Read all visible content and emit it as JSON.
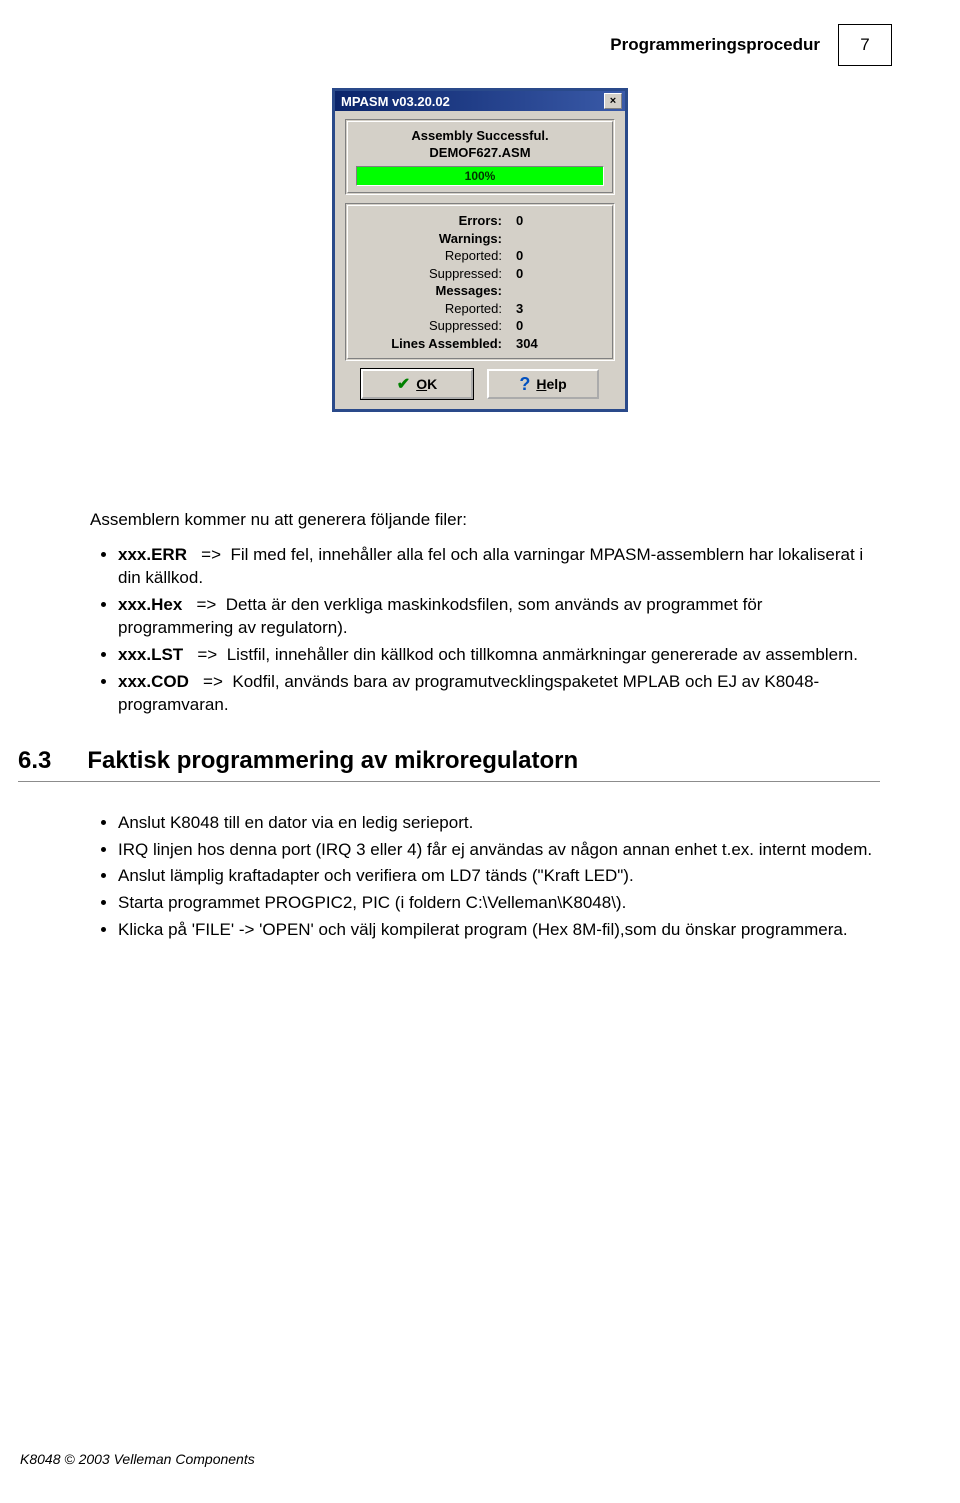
{
  "header": {
    "title": "Programmeringsprocedur",
    "page_number": "7"
  },
  "dialog": {
    "title": "MPASM v03.20.02",
    "status_line": "Assembly Successful.",
    "filename": "DEMOF627.ASM",
    "progress_pct": "100%",
    "stats": {
      "errors_label": "Errors:",
      "errors": "0",
      "warnings_label": "Warnings:",
      "reported_label": "Reported:",
      "suppressed_label": "Suppressed:",
      "warn_reported": "0",
      "warn_suppressed": "0",
      "messages_label": "Messages:",
      "msg_reported": "3",
      "msg_suppressed": "0",
      "lines_label": "Lines Assembled:",
      "lines": "304"
    },
    "ok_label": "OK",
    "help_label": "Help"
  },
  "intro": "Assemblern kommer nu att generera följande filer:",
  "files": [
    {
      "ext": "xxx.ERR",
      "arrow": "=>",
      "desc": "Fil med fel, innehåller alla fel och alla varningar MPASM-assemblern har lokaliserat i din källkod."
    },
    {
      "ext": "xxx.Hex",
      "arrow": "=>",
      "desc": "Detta är den verkliga maskinkodsfilen, som används av programmet för programmering av regulatorn)."
    },
    {
      "ext": "xxx.LST",
      "arrow": "=>",
      "desc": "Listfil, innehåller din källkod och tillkomna anmärkningar genererade av assemblern."
    },
    {
      "ext": "xxx.COD",
      "arrow": "=>",
      "desc": "Kodfil, används bara av programutvecklingspaketet MPLAB och EJ av K8048-programvaran."
    }
  ],
  "section": {
    "num": "6.3",
    "title": "Faktisk programmering av mikroregulatorn"
  },
  "steps": [
    "Anslut K8048 till en dator via en ledig serieport.",
    "IRQ linjen hos denna port (IRQ 3 eller 4) får ej användas av någon annan enhet t.ex. internt modem.",
    "Anslut lämplig kraftadapter och verifiera om LD7 tänds (\"Kraft LED\").",
    "Starta programmet PROGPIC2, PIC (i foldern C:\\Velleman\\K8048\\).",
    "Klicka på 'FILE' -> 'OPEN' och välj kompilerat program (Hex 8M-fil),som du önskar programmera."
  ],
  "footer": "K8048 © 2003 Velleman Components"
}
